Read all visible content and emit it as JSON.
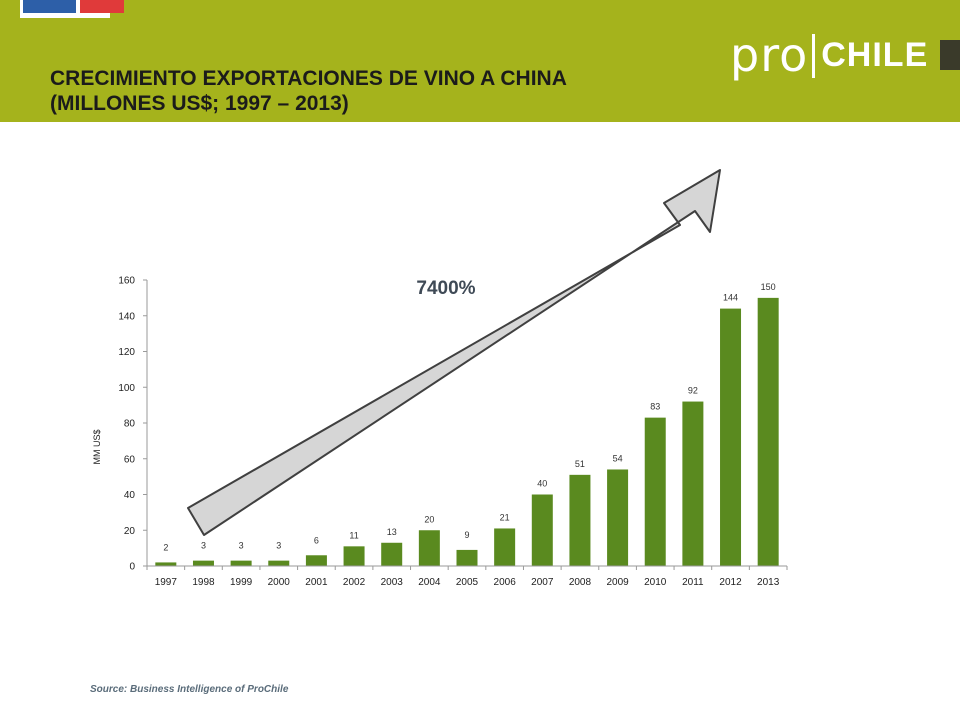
{
  "slide": {
    "title_line1": "CRECIMIENTO EXPORTACIONES DE VINO A CHINA",
    "title_line2": "(MILLONES US$; 1997 – 2013)",
    "brand_pro": "pro",
    "brand_chile": "CHILE",
    "source": "Source: Business  Intelligence  of ProChile"
  },
  "colors": {
    "header_band": "#a5b31c",
    "bar": "#5a8a1f",
    "arrow_fill": "#d6d6d6",
    "arrow_stroke": "#404040"
  },
  "chart_data": {
    "type": "bar",
    "categories": [
      "1997",
      "1998",
      "1999",
      "2000",
      "2001",
      "2002",
      "2003",
      "2004",
      "2005",
      "2006",
      "2007",
      "2008",
      "2009",
      "2010",
      "2011",
      "2012",
      "2013"
    ],
    "values": [
      2,
      3,
      3,
      3,
      6,
      11,
      13,
      20,
      9,
      21,
      40,
      51,
      54,
      83,
      92,
      144,
      150
    ],
    "data_labels": [
      "2",
      "3",
      "3",
      "3",
      "6",
      "11",
      "13",
      "20",
      "9",
      "21",
      "40",
      "51",
      "54",
      "83",
      "92",
      "144",
      "150"
    ],
    "title": "",
    "xlabel": "",
    "ylabel": "MM US$",
    "ylim": [
      0,
      160
    ],
    "yticks": [
      0,
      20,
      40,
      60,
      80,
      100,
      120,
      140,
      160
    ],
    "grid": false,
    "annotation": "7400%"
  }
}
